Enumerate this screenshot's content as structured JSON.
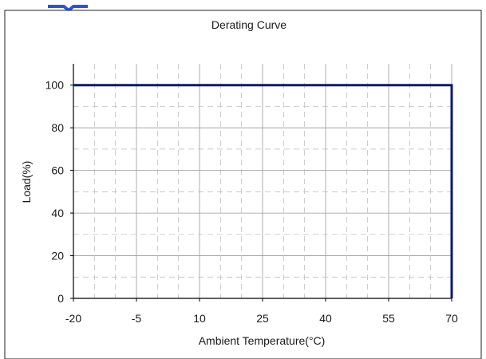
{
  "chart_data": {
    "type": "line",
    "title": "Derating Curve",
    "xlabel": "Ambient Temperature(°C)",
    "ylabel": "Load(%)",
    "x_ticks": [
      "-20",
      "-5",
      "10",
      "25",
      "40",
      "55",
      "70"
    ],
    "y_ticks": [
      "0",
      "20",
      "40",
      "60",
      "80",
      "100"
    ],
    "xlim": [
      -20,
      70
    ],
    "ylim": [
      0,
      110
    ],
    "grid": true,
    "series": [
      {
        "x": [
          -20,
          70,
          70
        ],
        "y": [
          100,
          100,
          0
        ],
        "color": "#0a1a6e"
      }
    ]
  },
  "colors": {
    "header_fragment": "#2a54d8",
    "line": "#0a1a6e"
  }
}
